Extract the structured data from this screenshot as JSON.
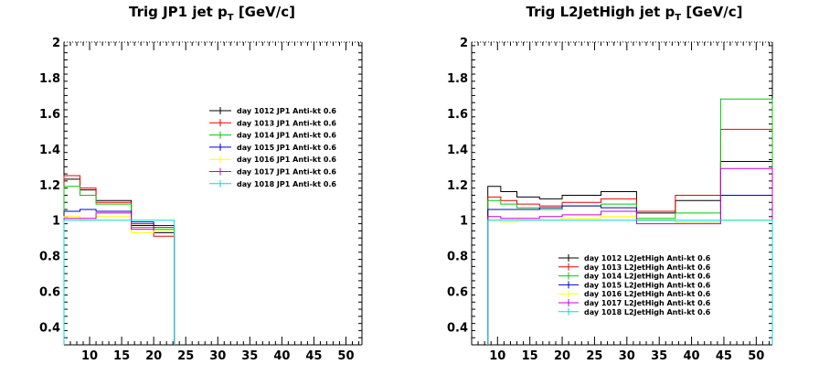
{
  "chart_data": [
    {
      "type": "line",
      "step": true,
      "title": "Trig JP1 jet p",
      "title_sub": "T",
      "title_suffix": " [GeV/c]",
      "xlim": [
        6,
        52.5
      ],
      "ylim": [
        0.3,
        2.0
      ],
      "xticks": [
        10,
        15,
        20,
        25,
        30,
        35,
        40,
        45,
        50
      ],
      "yticks": [
        0.4,
        0.6,
        0.8,
        1,
        1.2,
        1.4,
        1.6,
        1.8,
        2
      ],
      "legend_position": "right-middle",
      "bin_edges": [
        6,
        8.5,
        11,
        16.5,
        20,
        23.2
      ],
      "series": [
        {
          "name": "day 1012 JP1 Anti-kt 0.6",
          "color": "#000000",
          "values": [
            1.23,
            1.17,
            1.11,
            0.97,
            0.93
          ]
        },
        {
          "name": "day 1013 JP1 Anti-kt 0.6",
          "color": "#ee0000",
          "values": [
            1.25,
            1.18,
            1.1,
            0.98,
            0.91
          ]
        },
        {
          "name": "day 1014 JP1 Anti-kt 0.6",
          "color": "#00cc00",
          "values": [
            1.19,
            1.14,
            1.09,
            0.96,
            0.95
          ]
        },
        {
          "name": "day 1015 JP1 Anti-kt 0.6",
          "color": "#0000cc",
          "values": [
            1.05,
            1.06,
            1.05,
            0.99,
            0.97
          ]
        },
        {
          "name": "day 1016 JP1 Anti-kt 0.6",
          "color": "#ffff00",
          "values": [
            1.02,
            1.0,
            1.02,
            0.93,
            0.94
          ]
        },
        {
          "name": "day 1017 JP1 Anti-kt 0.6",
          "color": "#cc00cc",
          "values": [
            1.01,
            1.01,
            1.04,
            0.95,
            0.96
          ]
        },
        {
          "name": "day 1018 JP1 Anti-kt 0.6",
          "color": "#00dddd",
          "values": [
            1.0,
            1.0,
            1.0,
            1.0,
            1.0
          ]
        }
      ]
    },
    {
      "type": "line",
      "step": true,
      "title": "Trig L2JetHigh jet p",
      "title_sub": "T",
      "title_suffix": " [GeV/c]",
      "xlim": [
        6,
        52.5
      ],
      "ylim": [
        0.3,
        2.0
      ],
      "xticks": [
        10,
        15,
        20,
        25,
        30,
        35,
        40,
        45,
        50
      ],
      "yticks": [
        0.4,
        0.6,
        0.8,
        1,
        1.2,
        1.4,
        1.6,
        1.8,
        2
      ],
      "legend_position": "bottom-center",
      "bin_edges": [
        8.5,
        10.5,
        13,
        16.5,
        20,
        26,
        31.5,
        37.5,
        44.5,
        52.5
      ],
      "series": [
        {
          "name": "day 1012 L2JetHigh Anti-kt 0.6",
          "color": "#000000",
          "values": [
            1.19,
            1.16,
            1.13,
            1.12,
            1.14,
            1.16,
            1.04,
            1.11,
            1.33
          ]
        },
        {
          "name": "day 1013 L2JetHigh Anti-kt 0.6",
          "color": "#ee0000",
          "values": [
            1.13,
            1.11,
            1.09,
            1.08,
            1.1,
            1.12,
            1.05,
            1.14,
            1.51
          ]
        },
        {
          "name": "day 1014 L2JetHigh Anti-kt 0.6",
          "color": "#00cc00",
          "values": [
            1.11,
            1.09,
            1.07,
            1.06,
            1.08,
            1.09,
            1.01,
            1.04,
            1.68
          ]
        },
        {
          "name": "day 1015 L2JetHigh Anti-kt 0.6",
          "color": "#0000cc",
          "values": [
            1.06,
            1.06,
            1.06,
            1.07,
            1.08,
            1.07,
            1.0,
            0.99,
            1.14
          ]
        },
        {
          "name": "day 1016 L2JetHigh Anti-kt 0.6",
          "color": "#ffff00",
          "values": [
            1.0,
            0.99,
            1.0,
            1.0,
            1.01,
            1.02,
            1.0,
            0.99,
            1.0
          ]
        },
        {
          "name": "day 1017 L2JetHigh Anti-kt 0.6",
          "color": "#cc00cc",
          "values": [
            1.02,
            1.01,
            1.01,
            1.02,
            1.03,
            1.05,
            0.98,
            0.98,
            1.29
          ]
        },
        {
          "name": "day 1018 L2JetHigh Anti-kt 0.6",
          "color": "#00dddd",
          "values": [
            1.0,
            1.0,
            1.0,
            1.0,
            1.0,
            1.0,
            1.0,
            1.0,
            1.0
          ]
        }
      ]
    }
  ]
}
